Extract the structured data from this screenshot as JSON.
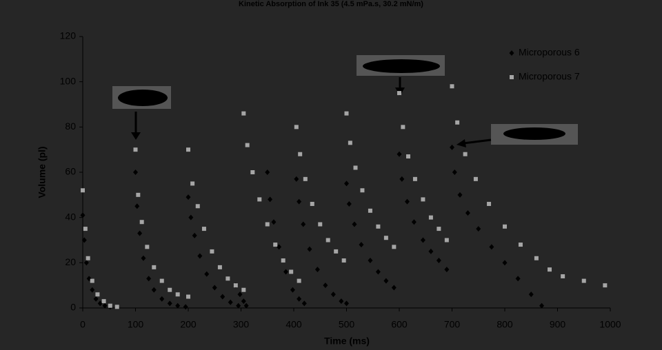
{
  "chart_data": {
    "type": "scatter",
    "title": "Kinetic Absorption of Ink 35 (4.5 mPa.s, 30.2 mN/m)",
    "x_label": "Time (ms)",
    "y_label": "Volume (pl)",
    "xlim": [
      0,
      1000
    ],
    "xticks": [
      0,
      100,
      200,
      300,
      400,
      500,
      600,
      700,
      800,
      900,
      1000
    ],
    "ylim": [
      0,
      120
    ],
    "yticks": [
      0,
      20,
      40,
      60,
      80,
      100,
      120
    ],
    "grid": false,
    "legend": "upper right",
    "series": [
      {
        "name": "Microporous 6",
        "color": "#000000",
        "marker": "diamond",
        "x": [
          0,
          3,
          7,
          12,
          18,
          25,
          33,
          42,
          52,
          100,
          103,
          108,
          115,
          125,
          135,
          150,
          165,
          180,
          195,
          200,
          205,
          212,
          222,
          235,
          250,
          265,
          280,
          295,
          290,
          298,
          305,
          310,
          350,
          355,
          362,
          372,
          385,
          398,
          410,
          420,
          405,
          410,
          418,
          430,
          445,
          460,
          475,
          490,
          500,
          500,
          505,
          515,
          528,
          545,
          560,
          575,
          590,
          600,
          605,
          615,
          628,
          645,
          660,
          675,
          690,
          700,
          705,
          715,
          730,
          750,
          775,
          800,
          825,
          850,
          870
        ],
        "values": [
          41,
          30,
          20,
          13,
          8,
          4,
          2,
          1,
          0.5,
          60,
          45,
          33,
          22,
          13,
          8,
          4,
          2,
          1,
          0.5,
          49,
          40,
          32,
          23,
          15,
          9,
          5,
          2.5,
          1,
          10,
          6,
          3,
          1,
          60,
          48,
          38,
          27,
          16,
          8,
          4,
          2,
          57,
          47,
          37,
          26,
          17,
          10,
          6,
          3,
          2,
          55,
          46,
          37,
          28,
          21,
          16,
          12,
          9,
          68,
          57,
          47,
          38,
          30,
          25,
          21,
          17,
          71,
          60,
          50,
          42,
          35,
          27,
          20,
          13,
          6,
          1
        ]
      },
      {
        "name": "Microporous 7",
        "color": "#a6a6a6",
        "marker": "square",
        "x": [
          0,
          5,
          10,
          18,
          28,
          40,
          52,
          65,
          100,
          105,
          112,
          122,
          135,
          150,
          165,
          180,
          200,
          200,
          208,
          218,
          230,
          245,
          260,
          275,
          290,
          305,
          305,
          312,
          322,
          335,
          350,
          365,
          380,
          395,
          410,
          405,
          412,
          422,
          435,
          450,
          465,
          480,
          495,
          500,
          507,
          517,
          530,
          545,
          560,
          575,
          590,
          600,
          607,
          617,
          630,
          645,
          660,
          675,
          690,
          700,
          710,
          725,
          745,
          770,
          800,
          830,
          860,
          885,
          910,
          950,
          990
        ],
        "values": [
          52,
          35,
          22,
          12,
          6,
          3,
          1,
          0.5,
          70,
          50,
          38,
          27,
          18,
          12,
          8,
          6,
          5,
          70,
          55,
          45,
          35,
          25,
          18,
          13,
          10,
          8,
          86,
          72,
          60,
          48,
          37,
          28,
          21,
          16,
          12,
          80,
          68,
          57,
          46,
          37,
          30,
          25,
          21,
          86,
          73,
          62,
          52,
          43,
          36,
          31,
          27,
          95,
          80,
          67,
          57,
          48,
          40,
          35,
          30,
          98,
          82,
          68,
          57,
          46,
          36,
          28,
          22,
          17,
          14,
          12,
          10
        ]
      }
    ]
  }
}
